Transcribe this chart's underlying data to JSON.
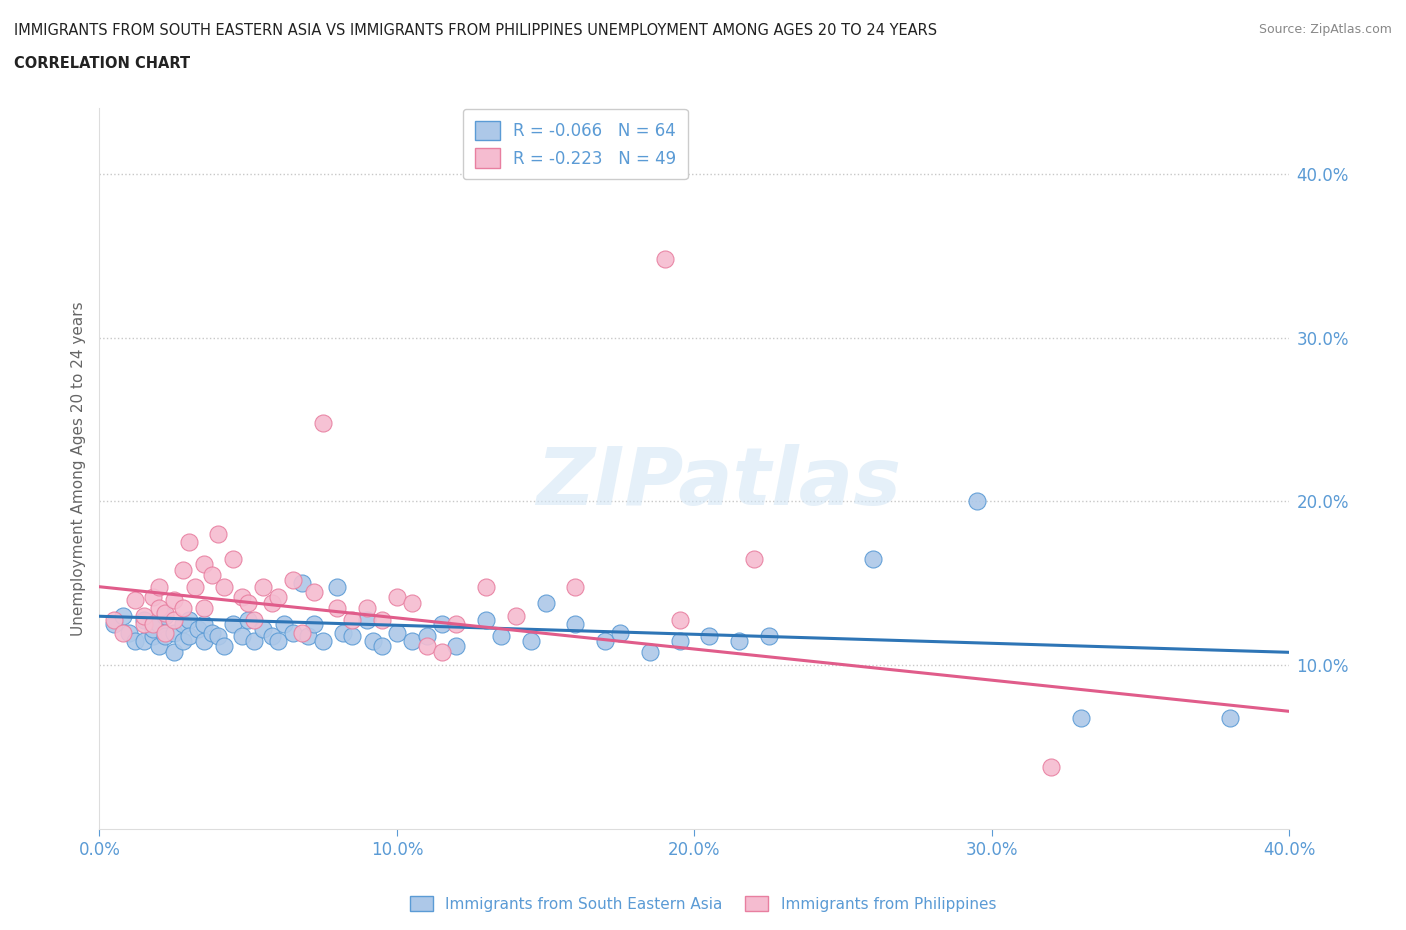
{
  "title_line1": "IMMIGRANTS FROM SOUTH EASTERN ASIA VS IMMIGRANTS FROM PHILIPPINES UNEMPLOYMENT AMONG AGES 20 TO 24 YEARS",
  "title_line2": "CORRELATION CHART",
  "source": "Source: ZipAtlas.com",
  "ylabel": "Unemployment Among Ages 20 to 24 years",
  "xlim": [
    0.0,
    0.4
  ],
  "ylim": [
    0.0,
    0.44
  ],
  "yticks": [
    0.1,
    0.2,
    0.3,
    0.4
  ],
  "xticks": [
    0.0,
    0.1,
    0.2,
    0.3,
    0.4
  ],
  "blue_label": "Immigrants from South Eastern Asia",
  "pink_label": "Immigrants from Philippines",
  "blue_R": "R = -0.066",
  "blue_N": "N = 64",
  "pink_R": "R = -0.223",
  "pink_N": "N = 49",
  "blue_color": "#adc8e8",
  "pink_color": "#f5bcd0",
  "blue_edge_color": "#5b9bd5",
  "pink_edge_color": "#e87fa0",
  "blue_line_color": "#2E75B6",
  "pink_line_color": "#E05C8A",
  "tick_color": "#5b9bd5",
  "grid_color": "#c8c8c8",
  "watermark": "ZIPatlas",
  "blue_points": [
    [
      0.005,
      0.125
    ],
    [
      0.008,
      0.13
    ],
    [
      0.01,
      0.12
    ],
    [
      0.012,
      0.115
    ],
    [
      0.015,
      0.128
    ],
    [
      0.015,
      0.115
    ],
    [
      0.018,
      0.118
    ],
    [
      0.018,
      0.122
    ],
    [
      0.02,
      0.125
    ],
    [
      0.02,
      0.112
    ],
    [
      0.022,
      0.13
    ],
    [
      0.022,
      0.118
    ],
    [
      0.025,
      0.12
    ],
    [
      0.025,
      0.108
    ],
    [
      0.028,
      0.125
    ],
    [
      0.028,
      0.115
    ],
    [
      0.03,
      0.128
    ],
    [
      0.03,
      0.118
    ],
    [
      0.033,
      0.122
    ],
    [
      0.035,
      0.115
    ],
    [
      0.035,
      0.125
    ],
    [
      0.038,
      0.12
    ],
    [
      0.04,
      0.118
    ],
    [
      0.042,
      0.112
    ],
    [
      0.045,
      0.125
    ],
    [
      0.048,
      0.118
    ],
    [
      0.05,
      0.128
    ],
    [
      0.052,
      0.115
    ],
    [
      0.055,
      0.122
    ],
    [
      0.058,
      0.118
    ],
    [
      0.06,
      0.115
    ],
    [
      0.062,
      0.125
    ],
    [
      0.065,
      0.12
    ],
    [
      0.068,
      0.15
    ],
    [
      0.07,
      0.118
    ],
    [
      0.072,
      0.125
    ],
    [
      0.075,
      0.115
    ],
    [
      0.08,
      0.148
    ],
    [
      0.082,
      0.12
    ],
    [
      0.085,
      0.118
    ],
    [
      0.09,
      0.128
    ],
    [
      0.092,
      0.115
    ],
    [
      0.095,
      0.112
    ],
    [
      0.1,
      0.12
    ],
    [
      0.105,
      0.115
    ],
    [
      0.11,
      0.118
    ],
    [
      0.115,
      0.125
    ],
    [
      0.12,
      0.112
    ],
    [
      0.13,
      0.128
    ],
    [
      0.135,
      0.118
    ],
    [
      0.145,
      0.115
    ],
    [
      0.15,
      0.138
    ],
    [
      0.16,
      0.125
    ],
    [
      0.17,
      0.115
    ],
    [
      0.175,
      0.12
    ],
    [
      0.185,
      0.108
    ],
    [
      0.195,
      0.115
    ],
    [
      0.205,
      0.118
    ],
    [
      0.215,
      0.115
    ],
    [
      0.225,
      0.118
    ],
    [
      0.26,
      0.165
    ],
    [
      0.295,
      0.2
    ],
    [
      0.33,
      0.068
    ],
    [
      0.38,
      0.068
    ]
  ],
  "pink_points": [
    [
      0.005,
      0.128
    ],
    [
      0.008,
      0.12
    ],
    [
      0.012,
      0.14
    ],
    [
      0.015,
      0.125
    ],
    [
      0.015,
      0.13
    ],
    [
      0.018,
      0.142
    ],
    [
      0.018,
      0.125
    ],
    [
      0.02,
      0.148
    ],
    [
      0.02,
      0.135
    ],
    [
      0.022,
      0.132
    ],
    [
      0.022,
      0.12
    ],
    [
      0.025,
      0.14
    ],
    [
      0.025,
      0.128
    ],
    [
      0.028,
      0.158
    ],
    [
      0.028,
      0.135
    ],
    [
      0.03,
      0.175
    ],
    [
      0.032,
      0.148
    ],
    [
      0.035,
      0.162
    ],
    [
      0.035,
      0.135
    ],
    [
      0.038,
      0.155
    ],
    [
      0.04,
      0.18
    ],
    [
      0.042,
      0.148
    ],
    [
      0.045,
      0.165
    ],
    [
      0.048,
      0.142
    ],
    [
      0.05,
      0.138
    ],
    [
      0.052,
      0.128
    ],
    [
      0.055,
      0.148
    ],
    [
      0.058,
      0.138
    ],
    [
      0.06,
      0.142
    ],
    [
      0.065,
      0.152
    ],
    [
      0.068,
      0.12
    ],
    [
      0.072,
      0.145
    ],
    [
      0.075,
      0.248
    ],
    [
      0.08,
      0.135
    ],
    [
      0.085,
      0.128
    ],
    [
      0.09,
      0.135
    ],
    [
      0.095,
      0.128
    ],
    [
      0.1,
      0.142
    ],
    [
      0.105,
      0.138
    ],
    [
      0.11,
      0.112
    ],
    [
      0.115,
      0.108
    ],
    [
      0.12,
      0.125
    ],
    [
      0.13,
      0.148
    ],
    [
      0.14,
      0.13
    ],
    [
      0.16,
      0.148
    ],
    [
      0.19,
      0.348
    ],
    [
      0.195,
      0.128
    ],
    [
      0.22,
      0.165
    ],
    [
      0.32,
      0.038
    ]
  ]
}
